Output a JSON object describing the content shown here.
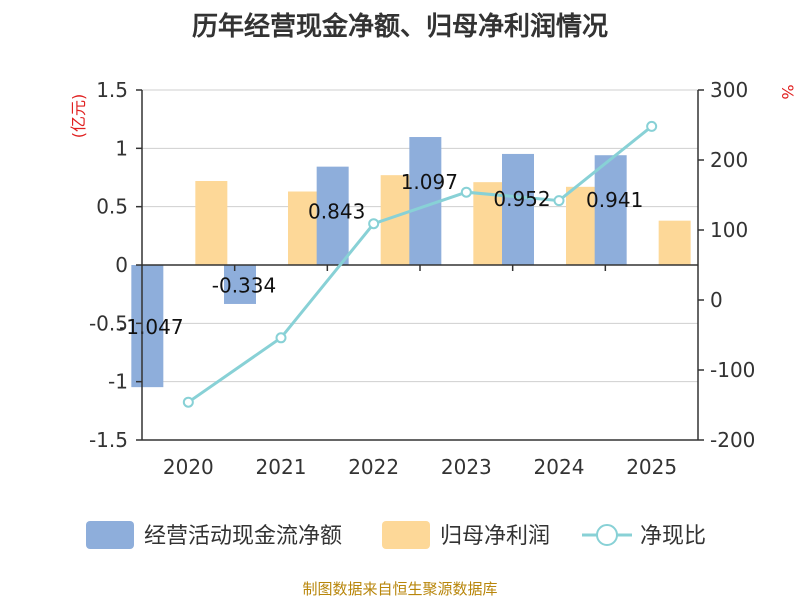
{
  "chart_data": {
    "type": "bar",
    "title": "历年经营现金净额、归母净利润情况",
    "categories": [
      "2020",
      "2021",
      "2022",
      "2023",
      "2024",
      "2025"
    ],
    "series": [
      {
        "name": "经营活动现金流净额",
        "type": "bar",
        "axis": "left",
        "color": "#8eaedb",
        "values": [
          -1.047,
          -0.334,
          0.843,
          1.097,
          0.952,
          0.941
        ]
      },
      {
        "name": "归母净利润",
        "type": "bar",
        "axis": "left",
        "color": "#fdd898",
        "values": [
          0.72,
          0.63,
          0.77,
          0.71,
          0.67,
          0.38
        ]
      },
      {
        "name": "净现比",
        "type": "line",
        "axis": "right",
        "color": "#88d1d6",
        "values": [
          -146,
          -54,
          109,
          154,
          142,
          248
        ]
      }
    ],
    "data_labels": [
      "-1.047",
      "-0.334",
      "0.843",
      "1.097",
      "0.952",
      "0.941"
    ],
    "y_left": {
      "label": "(亿元)",
      "ylim": [
        -1.5,
        1.5
      ],
      "ticks": [
        1.5,
        1,
        0.5,
        0,
        -0.5,
        -1,
        -1.5
      ],
      "tick_labels": [
        "1.5",
        "1",
        "0.5",
        "0",
        "-0.5",
        "-1",
        "-1.5"
      ]
    },
    "y_right": {
      "label": "%",
      "ylim": [
        -200,
        300
      ],
      "ticks": [
        300,
        200,
        100,
        0,
        -100,
        -200
      ],
      "tick_labels": [
        "300",
        "200",
        "100",
        "0",
        "-100",
        "-200"
      ]
    },
    "grid": true,
    "legend_position": "bottom"
  },
  "source": "制图数据来自恒生聚源数据库"
}
